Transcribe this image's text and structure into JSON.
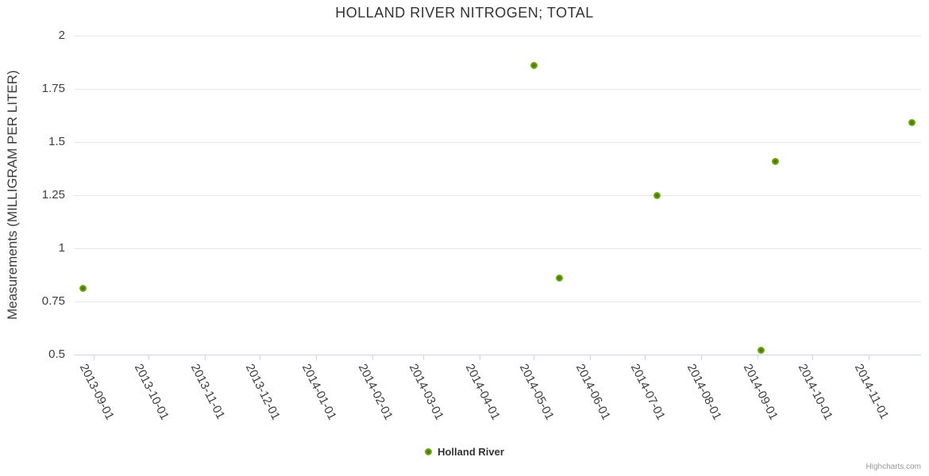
{
  "chart_data": {
    "type": "scatter",
    "title": "HOLLAND RIVER NITROGEN; TOTAL",
    "xlabel": "",
    "ylabel": "Measurements (MILLIGRAM PER LITER)",
    "grid": "horizontal-only",
    "legend_position": "bottom-center",
    "ylim": [
      0.5,
      2
    ],
    "y_ticks": [
      2,
      1.75,
      1.5,
      1.25,
      1,
      0.75,
      0.5
    ],
    "xlim": [
      "2013-08-21",
      "2014-11-30"
    ],
    "x_ticks": [
      "2013-09-01",
      "2013-10-01",
      "2013-11-01",
      "2013-12-01",
      "2014-01-01",
      "2014-02-01",
      "2014-03-01",
      "2014-04-01",
      "2014-05-01",
      "2014-06-01",
      "2014-07-01",
      "2014-08-01",
      "2014-09-01",
      "2014-10-01",
      "2014-11-01"
    ],
    "series": [
      {
        "name": "Holland River",
        "color": "#74ad14",
        "points": [
          {
            "date": "2013-08-26",
            "value": 0.81
          },
          {
            "date": "2014-05-01",
            "value": 1.86
          },
          {
            "date": "2014-05-15",
            "value": 0.86
          },
          {
            "date": "2014-07-08",
            "value": 1.25
          },
          {
            "date": "2014-09-03",
            "value": 0.52
          },
          {
            "date": "2014-09-11",
            "value": 1.41
          },
          {
            "date": "2014-11-25",
            "value": 1.59
          }
        ]
      }
    ]
  },
  "colors": {
    "grid_line": "#e6e6e6",
    "axis_line": "#ccd6eb",
    "title_text": "#333333",
    "label_text": "#3d3d3d",
    "marker_green": "#74ad14"
  },
  "credits": {
    "label": "Highcharts.com"
  }
}
